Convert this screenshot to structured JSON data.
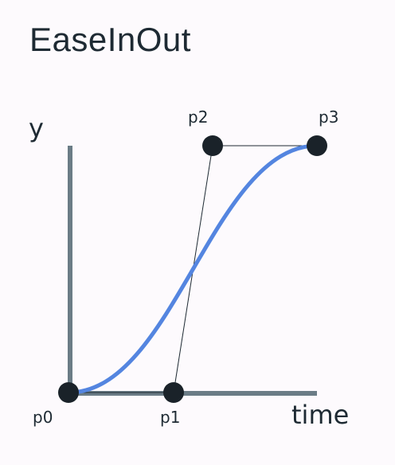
{
  "title": "EaseInOut",
  "axes": {
    "y_label": "y",
    "x_label": "time",
    "color": "#6b7c86"
  },
  "curve": {
    "type": "cubic-bezier",
    "color": "#5485e0"
  },
  "control_line_color": "#1e2a33",
  "point_color": "#1a2229",
  "points": [
    {
      "label": "p0"
    },
    {
      "label": "p1"
    },
    {
      "label": "p2"
    },
    {
      "label": "p3"
    }
  ]
}
